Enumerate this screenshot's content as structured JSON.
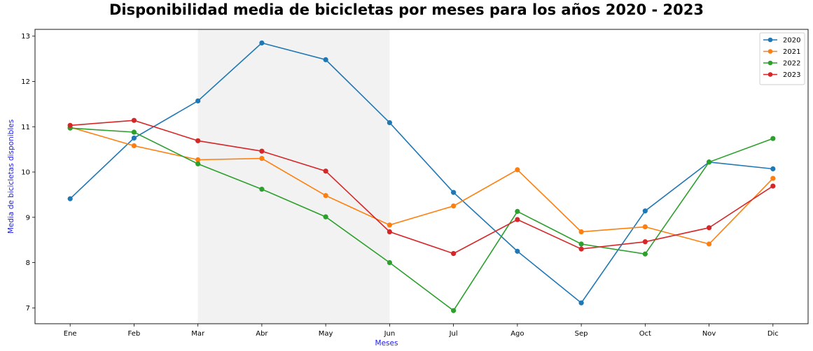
{
  "chart_data": {
    "type": "line",
    "title": "Disponibilidad media de bicicletas por meses para los años 2020 - 2023",
    "xlabel": "Meses",
    "ylabel": "Media de bicicletas disponibles",
    "categories": [
      "Ene",
      "Feb",
      "Mar",
      "Abr",
      "May",
      "Jun",
      "Jul",
      "Ago",
      "Sep",
      "Oct",
      "Nov",
      "Dic"
    ],
    "y_ticks": [
      7,
      8,
      9,
      10,
      11,
      12,
      13
    ],
    "ylim": [
      6.65,
      13.15
    ],
    "highlight_span": [
      "Mar",
      "Jun"
    ],
    "highlight_color": "#f2f2f2",
    "grid": false,
    "legend_position": "top-right",
    "label_color": "#2020ee",
    "series": [
      {
        "name": "2020",
        "color": "#1f77b4",
        "values": [
          9.41,
          10.75,
          11.57,
          12.85,
          12.48,
          11.09,
          9.55,
          8.25,
          7.11,
          9.14,
          10.22,
          10.07
        ]
      },
      {
        "name": "2021",
        "color": "#ff7f0e",
        "values": [
          10.99,
          10.58,
          10.27,
          10.3,
          9.48,
          8.83,
          9.25,
          10.05,
          8.68,
          8.79,
          8.41,
          9.86
        ]
      },
      {
        "name": "2022",
        "color": "#2ca02c",
        "values": [
          10.97,
          10.88,
          10.18,
          9.62,
          9.01,
          8.0,
          6.94,
          9.13,
          8.41,
          8.19,
          10.22,
          10.74
        ]
      },
      {
        "name": "2023",
        "color": "#d62728",
        "values": [
          11.03,
          11.14,
          10.69,
          10.46,
          10.02,
          8.68,
          8.2,
          8.95,
          8.3,
          8.46,
          8.77,
          9.69
        ]
      }
    ]
  }
}
